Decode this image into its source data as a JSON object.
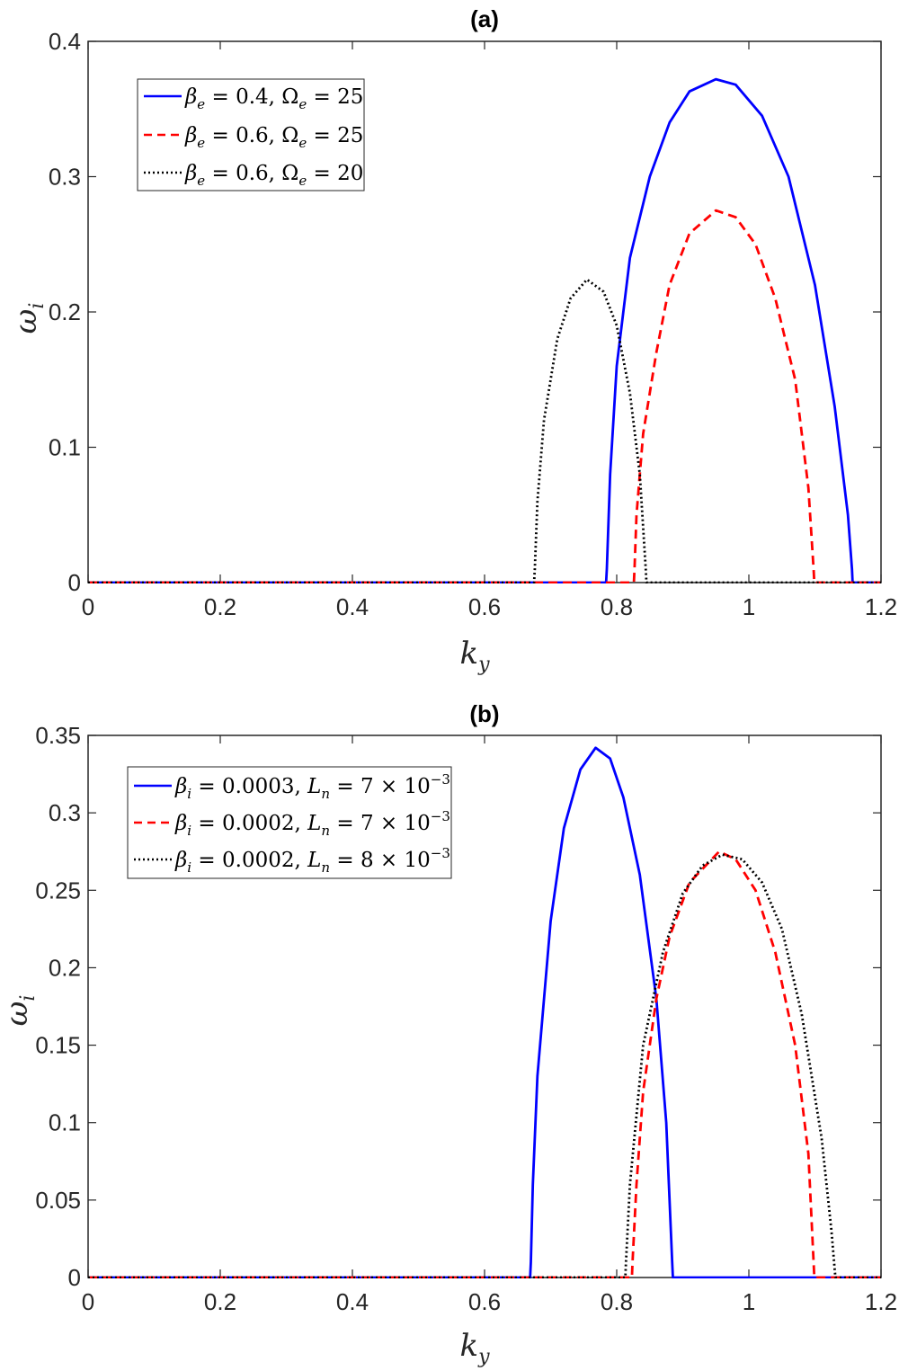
{
  "chart_data": [
    {
      "type": "line",
      "title": "(a)",
      "xlabel": "k_y",
      "ylabel": "ω_i",
      "xlim": [
        0,
        1.2
      ],
      "ylim": [
        0,
        0.4
      ],
      "xticks": [
        "0",
        "0.2",
        "0.4",
        "0.6",
        "0.8",
        "1",
        "1.2"
      ],
      "xtick_values": [
        0,
        0.2,
        0.4,
        0.6,
        0.8,
        1,
        1.2
      ],
      "yticks": [
        "0",
        "0.1",
        "0.2",
        "0.3",
        "0.4"
      ],
      "ytick_values": [
        0,
        0.1,
        0.2,
        0.3,
        0.4
      ],
      "grid": false,
      "legend_position": "top-left",
      "series": [
        {
          "name": "β_e = 0.4, Ω_e = 25",
          "color": "#0000ff",
          "style": "solid",
          "x": [
            0,
            0.784,
            0.785,
            0.79,
            0.8,
            0.82,
            0.85,
            0.88,
            0.91,
            0.95,
            0.98,
            1.02,
            1.06,
            1.1,
            1.13,
            1.15,
            1.156,
            1.157,
            1.2
          ],
          "y": [
            0,
            0,
            0.01,
            0.08,
            0.16,
            0.24,
            0.3,
            0.34,
            0.363,
            0.372,
            0.368,
            0.345,
            0.3,
            0.22,
            0.13,
            0.05,
            0.01,
            0,
            0
          ]
        },
        {
          "name": "β_e = 0.6, Ω_e = 25",
          "color": "#ff0000",
          "style": "dashed",
          "x": [
            0,
            0.826,
            0.827,
            0.83,
            0.84,
            0.86,
            0.88,
            0.91,
            0.95,
            0.98,
            1.01,
            1.04,
            1.07,
            1.09,
            1.098,
            1.099,
            1.2
          ],
          "y": [
            0,
            0,
            0.01,
            0.05,
            0.11,
            0.17,
            0.22,
            0.258,
            0.275,
            0.27,
            0.25,
            0.21,
            0.15,
            0.07,
            0.01,
            0,
            0
          ]
        },
        {
          "name": "β_e = 0.6, Ω_e = 20",
          "color": "#000000",
          "style": "dotted",
          "x": [
            0,
            0.675,
            0.676,
            0.68,
            0.69,
            0.71,
            0.73,
            0.755,
            0.78,
            0.8,
            0.82,
            0.835,
            0.844,
            0.845,
            1.2
          ],
          "y": [
            0,
            0,
            0.01,
            0.06,
            0.12,
            0.18,
            0.21,
            0.224,
            0.215,
            0.19,
            0.14,
            0.08,
            0.01,
            0,
            0
          ]
        }
      ]
    },
    {
      "type": "line",
      "title": "(b)",
      "xlabel": "k_y",
      "ylabel": "ω_i",
      "xlim": [
        0,
        1.2
      ],
      "ylim": [
        0,
        0.35
      ],
      "xticks": [
        "0",
        "0.2",
        "0.4",
        "0.6",
        "0.8",
        "1",
        "1.2"
      ],
      "xtick_values": [
        0,
        0.2,
        0.4,
        0.6,
        0.8,
        1,
        1.2
      ],
      "yticks": [
        "0",
        "0.05",
        "0.1",
        "0.15",
        "0.2",
        "0.25",
        "0.3",
        "0.35"
      ],
      "ytick_values": [
        0,
        0.05,
        0.1,
        0.15,
        0.2,
        0.25,
        0.3,
        0.35
      ],
      "grid": false,
      "legend_position": "top-left",
      "series": [
        {
          "name": "β_i = 0.0003, L_n = 7 × 10^-3",
          "color": "#0000ff",
          "style": "solid",
          "x": [
            0,
            0.669,
            0.67,
            0.673,
            0.68,
            0.7,
            0.72,
            0.745,
            0.768,
            0.79,
            0.81,
            0.835,
            0.86,
            0.875,
            0.884,
            0.885,
            1.2
          ],
          "y": [
            0,
            0,
            0.01,
            0.06,
            0.13,
            0.23,
            0.29,
            0.328,
            0.342,
            0.335,
            0.31,
            0.26,
            0.18,
            0.1,
            0.01,
            0,
            0
          ]
        },
        {
          "name": "β_i = 0.0002, L_n = 7 × 10^-3",
          "color": "#ff0000",
          "style": "dashed",
          "x": [
            0,
            0.823,
            0.824,
            0.83,
            0.84,
            0.86,
            0.88,
            0.91,
            0.955,
            0.98,
            1.01,
            1.04,
            1.07,
            1.09,
            1.098,
            1.099,
            1.2
          ],
          "y": [
            0,
            0,
            0.01,
            0.06,
            0.12,
            0.18,
            0.22,
            0.255,
            0.275,
            0.27,
            0.25,
            0.21,
            0.15,
            0.08,
            0.01,
            0,
            0
          ]
        },
        {
          "name": "β_i = 0.0002, L_n = 8 × 10^-3",
          "color": "#000000",
          "style": "dotted",
          "x": [
            0,
            0.813,
            0.814,
            0.82,
            0.84,
            0.87,
            0.9,
            0.93,
            0.96,
            0.99,
            1.02,
            1.05,
            1.08,
            1.11,
            1.125,
            1.13,
            1.131,
            1.2
          ],
          "y": [
            0,
            0,
            0.01,
            0.06,
            0.15,
            0.21,
            0.248,
            0.266,
            0.273,
            0.27,
            0.255,
            0.225,
            0.17,
            0.09,
            0.03,
            0.005,
            0,
            0
          ]
        }
      ]
    }
  ]
}
